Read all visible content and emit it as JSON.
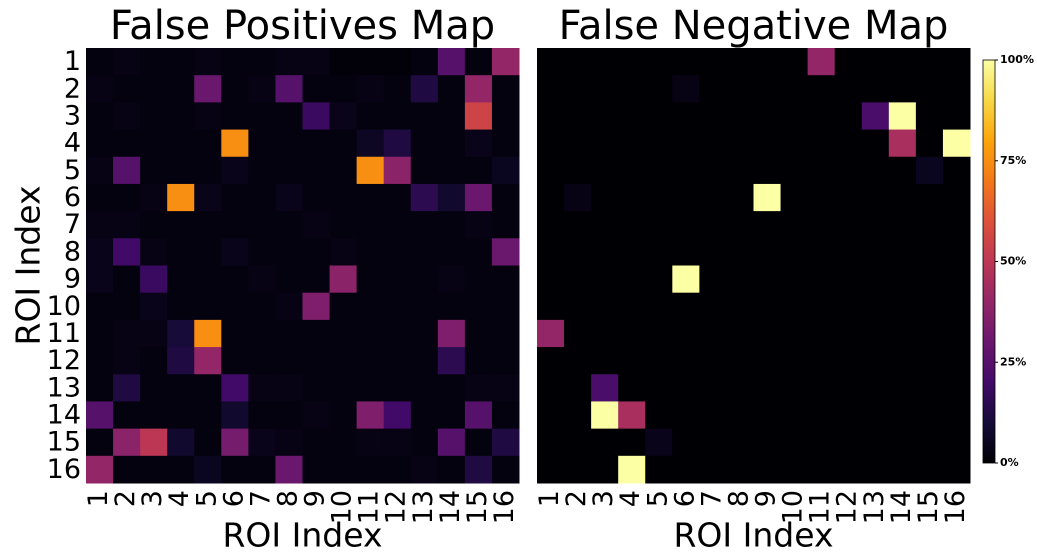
{
  "chart_data": [
    {
      "type": "heatmap",
      "title": "False Positives Map",
      "xlabel": "ROI Index",
      "ylabel": "ROI Index",
      "colormap": "inferno",
      "clim": [
        0,
        100
      ],
      "x_categories": [
        "1",
        "2",
        "3",
        "4",
        "5",
        "6",
        "7",
        "8",
        "9",
        "10",
        "11",
        "12",
        "13",
        "14",
        "15",
        "16"
      ],
      "y_categories": [
        "1",
        "2",
        "3",
        "4",
        "5",
        "6",
        "7",
        "8",
        "9",
        "10",
        "11",
        "12",
        "13",
        "14",
        "15",
        "16"
      ],
      "values": [
        [
          2,
          3,
          2,
          2,
          3,
          2,
          2,
          3,
          3,
          1,
          1,
          1,
          2,
          25,
          2,
          40
        ],
        [
          3,
          2,
          2,
          2,
          30,
          2,
          3,
          25,
          2,
          2,
          3,
          2,
          12,
          2,
          40,
          2
        ],
        [
          2,
          3,
          2,
          2,
          3,
          2,
          2,
          2,
          18,
          4,
          2,
          2,
          2,
          2,
          55,
          2
        ],
        [
          2,
          2,
          2,
          2,
          2,
          75,
          2,
          2,
          2,
          2,
          6,
          12,
          2,
          2,
          4,
          2
        ],
        [
          3,
          25,
          2,
          2,
          2,
          4,
          2,
          2,
          2,
          2,
          75,
          38,
          2,
          2,
          2,
          5
        ],
        [
          2,
          2,
          3,
          75,
          4,
          2,
          2,
          4,
          2,
          2,
          2,
          2,
          15,
          8,
          30,
          2
        ],
        [
          3,
          3,
          2,
          2,
          2,
          2,
          2,
          2,
          3,
          2,
          2,
          2,
          2,
          2,
          3,
          2
        ],
        [
          4,
          20,
          3,
          2,
          2,
          4,
          2,
          2,
          2,
          3,
          2,
          2,
          2,
          2,
          2,
          30
        ],
        [
          4,
          2,
          18,
          2,
          2,
          2,
          3,
          2,
          2,
          38,
          2,
          2,
          2,
          3,
          2,
          2
        ],
        [
          2,
          2,
          4,
          2,
          2,
          2,
          2,
          3,
          35,
          2,
          2,
          2,
          2,
          2,
          2,
          2
        ],
        [
          2,
          3,
          3,
          10,
          75,
          2,
          2,
          2,
          2,
          2,
          2,
          2,
          2,
          35,
          2,
          2
        ],
        [
          2,
          3,
          2,
          12,
          40,
          2,
          2,
          2,
          2,
          2,
          2,
          2,
          2,
          15,
          2,
          2
        ],
        [
          2,
          12,
          2,
          2,
          2,
          20,
          3,
          3,
          2,
          2,
          2,
          2,
          2,
          2,
          3,
          3
        ],
        [
          25,
          2,
          2,
          2,
          2,
          8,
          2,
          2,
          3,
          2,
          35,
          20,
          2,
          2,
          25,
          2
        ],
        [
          2,
          38,
          50,
          8,
          2,
          33,
          4,
          3,
          2,
          2,
          3,
          3,
          2,
          25,
          2,
          12
        ],
        [
          40,
          2,
          2,
          2,
          5,
          2,
          2,
          30,
          2,
          2,
          2,
          2,
          3,
          2,
          12,
          2
        ]
      ]
    },
    {
      "type": "heatmap",
      "title": "False Negative Map",
      "xlabel": "ROI Index",
      "colormap": "inferno",
      "clim": [
        0,
        100
      ],
      "x_categories": [
        "1",
        "2",
        "3",
        "4",
        "5",
        "6",
        "7",
        "8",
        "9",
        "10",
        "11",
        "12",
        "13",
        "14",
        "15",
        "16"
      ],
      "colorbar": {
        "ticks": [
          {
            "value": 0,
            "label": "0%"
          },
          {
            "value": 25,
            "label": "25%"
          },
          {
            "value": 50,
            "label": "50%"
          },
          {
            "value": 75,
            "label": "75%"
          },
          {
            "value": 100,
            "label": "100%"
          }
        ]
      },
      "values": [
        [
          0,
          0,
          0,
          0,
          0,
          0,
          0,
          0,
          0,
          0,
          40,
          0,
          0,
          0,
          0,
          0
        ],
        [
          0,
          0,
          0,
          0,
          0,
          3,
          0,
          0,
          0,
          0,
          0,
          0,
          0,
          0,
          0,
          0
        ],
        [
          0,
          0,
          0,
          0,
          0,
          0,
          0,
          0,
          0,
          0,
          0,
          0,
          22,
          100,
          0,
          0
        ],
        [
          0,
          0,
          0,
          0,
          0,
          0,
          0,
          0,
          0,
          0,
          0,
          0,
          0,
          45,
          0,
          100
        ],
        [
          0,
          0,
          0,
          0,
          0,
          0,
          0,
          0,
          0,
          0,
          0,
          0,
          0,
          0,
          5,
          0
        ],
        [
          0,
          3,
          0,
          0,
          0,
          0,
          0,
          0,
          100,
          0,
          0,
          0,
          0,
          0,
          0,
          0
        ],
        [
          0,
          0,
          0,
          0,
          0,
          0,
          0,
          0,
          0,
          0,
          0,
          0,
          0,
          0,
          0,
          0
        ],
        [
          0,
          0,
          0,
          0,
          0,
          0,
          0,
          0,
          0,
          0,
          0,
          0,
          0,
          0,
          0,
          0
        ],
        [
          0,
          0,
          0,
          0,
          0,
          100,
          0,
          0,
          0,
          0,
          0,
          0,
          0,
          0,
          0,
          0
        ],
        [
          0,
          0,
          0,
          0,
          0,
          0,
          0,
          0,
          0,
          0,
          0,
          0,
          0,
          0,
          0,
          0
        ],
        [
          40,
          0,
          0,
          0,
          0,
          0,
          0,
          0,
          0,
          0,
          0,
          0,
          0,
          0,
          0,
          0
        ],
        [
          0,
          0,
          0,
          0,
          0,
          0,
          0,
          0,
          0,
          0,
          0,
          0,
          0,
          0,
          0,
          0
        ],
        [
          0,
          0,
          22,
          0,
          0,
          0,
          0,
          0,
          0,
          0,
          0,
          0,
          0,
          0,
          0,
          0
        ],
        [
          0,
          0,
          100,
          45,
          0,
          0,
          0,
          0,
          0,
          0,
          0,
          0,
          0,
          0,
          0,
          0
        ],
        [
          0,
          0,
          0,
          0,
          4,
          0,
          0,
          0,
          0,
          0,
          0,
          0,
          0,
          0,
          0,
          0
        ],
        [
          0,
          0,
          0,
          100,
          0,
          0,
          0,
          0,
          0,
          0,
          0,
          0,
          0,
          0,
          0,
          0
        ]
      ]
    }
  ]
}
